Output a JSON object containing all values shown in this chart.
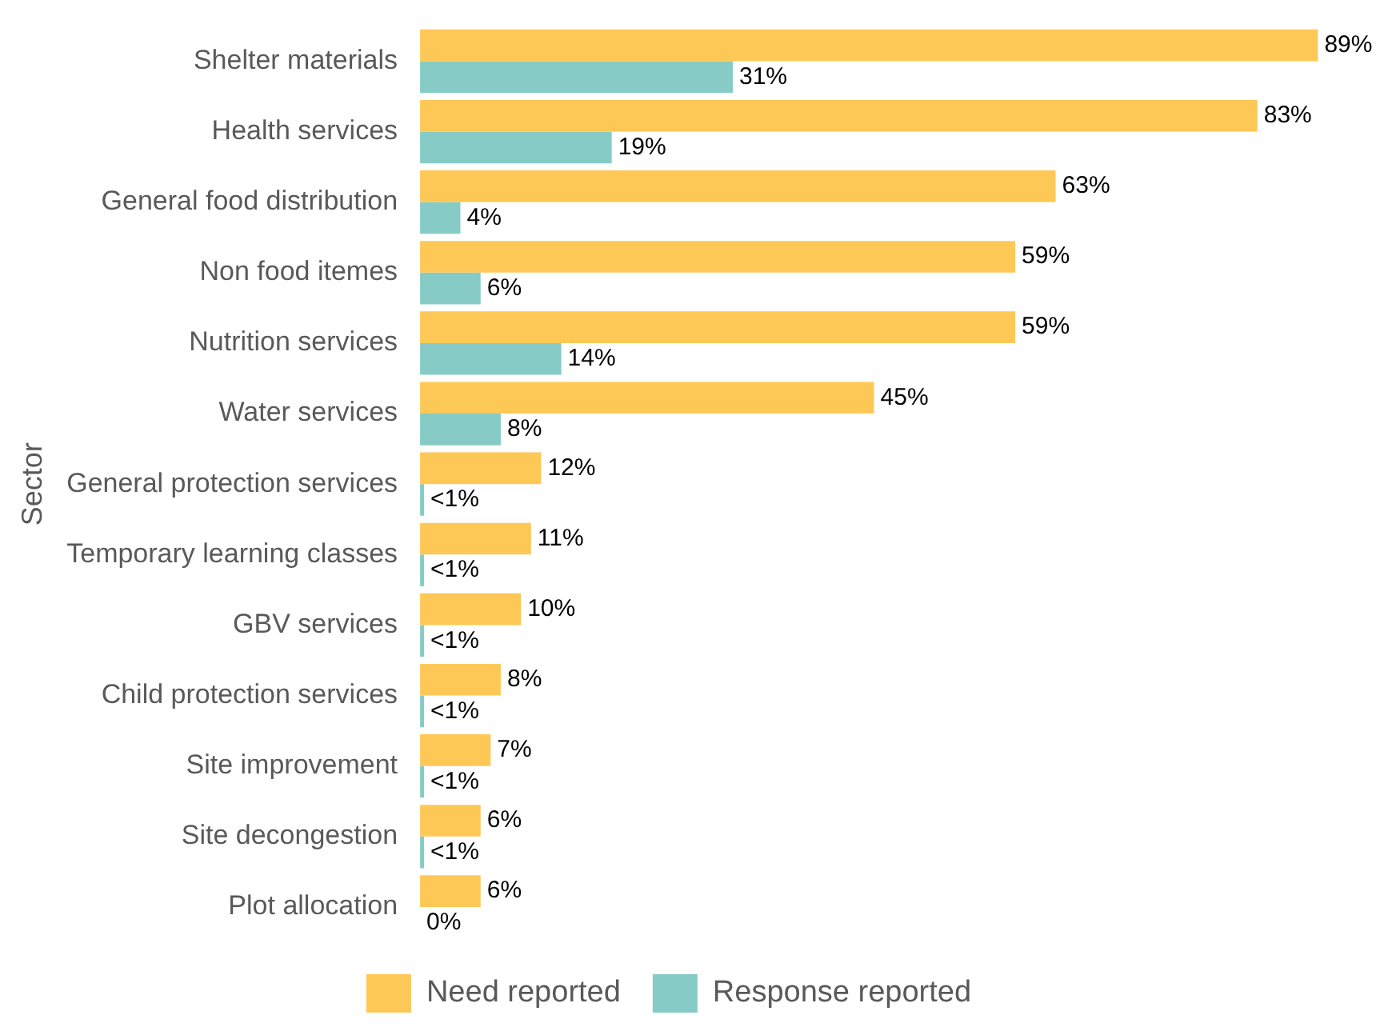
{
  "chart_data": {
    "type": "bar",
    "orientation": "horizontal",
    "ylabel": "Sector",
    "categories": [
      "Shelter materials",
      "Health services",
      "General food distribution",
      "Non food itemes",
      "Nutrition services",
      "Water services",
      "General protection services",
      "Temporary learning classes",
      "GBV services",
      "Child protection services",
      "Site improvement",
      "Site decongestion",
      "Plot allocation"
    ],
    "series": [
      {
        "name": "Need reported",
        "color": "#fec857",
        "values": [
          89,
          83,
          63,
          59,
          59,
          45,
          12,
          11,
          10,
          8,
          7,
          6,
          6
        ],
        "value_labels": [
          "89%",
          "83%",
          "63%",
          "59%",
          "59%",
          "45%",
          "12%",
          "11%",
          "10%",
          "8%",
          "7%",
          "6%",
          "6%"
        ]
      },
      {
        "name": "Response reported",
        "color": "#86cbc5",
        "values": [
          31,
          19,
          4,
          6,
          14,
          8,
          0.4,
          0.4,
          0.4,
          0.4,
          0.4,
          0.4,
          0
        ],
        "value_labels": [
          "31%",
          "19%",
          "4%",
          "6%",
          "14%",
          "8%",
          "<1%",
          "<1%",
          "<1%",
          "<1%",
          "<1%",
          "<1%",
          "0%"
        ]
      }
    ],
    "tick_labels": "y",
    "legend": "bottom"
  }
}
